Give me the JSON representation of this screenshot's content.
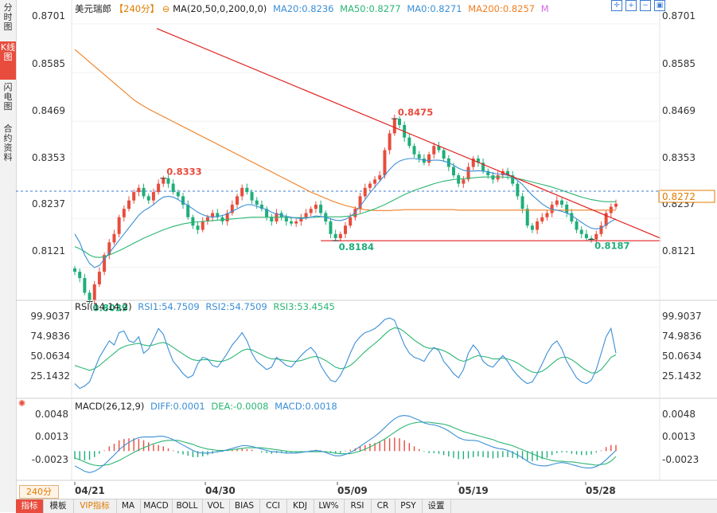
{
  "left_tabs": [
    {
      "label": "分时图",
      "active": false
    },
    {
      "label": "K线图",
      "active": true
    },
    {
      "label": "闪电图",
      "active": false
    },
    {
      "label": "合约资料",
      "active": false
    }
  ],
  "header": {
    "symbol": "美元瑞郎",
    "period": "【240分】",
    "ma_label": "MA(20,50,0,200,0,0)",
    "ma20": "MA20:0.8236",
    "ma50": "MA50:0.8277",
    "ma0": "MA0:0.8271",
    "ma200": "MA200:0.8257",
    "extra": "M"
  },
  "colors": {
    "up": "#e84c3d",
    "down": "#1fae79",
    "ma20": "#3b8fd6",
    "ma50": "#2bb673",
    "ma200": "#f07f22",
    "trendline": "#e02020",
    "axis_text": "#333333",
    "dashed": "#3b7bd6"
  },
  "price_axis": [
    "0.8701",
    "0.8585",
    "0.8469",
    "0.8353",
    "0.8237",
    "0.8121"
  ],
  "current_price": "0.8272",
  "annotations": {
    "a1": "0.8333",
    "a2": "0.8475",
    "a3": "0.8184",
    "a4": "0.8187",
    "a5": "0.8039"
  },
  "rsi": {
    "title": "RSI(14,14,2)",
    "rsi1": "RSI1:54.7509",
    "rsi2": "RSI2:54.7509",
    "rsi3": "RSI3:53.4545",
    "axis": [
      "99.9037",
      "74.9836",
      "50.0634",
      "25.1432"
    ]
  },
  "macd": {
    "title": "MACD(26,12,9)",
    "diff": "DIFF:0.0001",
    "dea": "DEA:-0.0008",
    "macd": "MACD:0.0018",
    "axis": [
      "0.0048",
      "0.0013",
      "-0.0023"
    ]
  },
  "dates": [
    "04/21",
    "04/30",
    "05/09",
    "05/19",
    "05/28"
  ],
  "period_tag": "240分",
  "bottom_tabs": [
    {
      "label": "指标",
      "active": true,
      "vip": false
    },
    {
      "label": "模板",
      "active": false,
      "vip": false
    },
    {
      "label": "VIP指标",
      "active": false,
      "vip": true
    },
    {
      "label": "MA",
      "active": false,
      "vip": false
    },
    {
      "label": "MACD",
      "active": false,
      "vip": false
    },
    {
      "label": "BOLL",
      "active": false,
      "vip": false
    },
    {
      "label": "VOL",
      "active": false,
      "vip": false
    },
    {
      "label": "BIAS",
      "active": false,
      "vip": false
    },
    {
      "label": "CCI",
      "active": false,
      "vip": false
    },
    {
      "label": "KDJ",
      "active": false,
      "vip": false
    },
    {
      "label": "LW%",
      "active": false,
      "vip": false
    },
    {
      "label": "RSI",
      "active": false,
      "vip": false
    },
    {
      "label": "CR",
      "active": false,
      "vip": false
    },
    {
      "label": "PSY",
      "active": false,
      "vip": false
    },
    {
      "label": "设置",
      "active": false,
      "vip": false
    }
  ],
  "toolbar_icons": [
    "crosshair-icon",
    "zoom-in-icon",
    "zoom-out-icon",
    "layout-icon"
  ],
  "chart_data": {
    "type": "candlestick",
    "symbol": "美元瑞郎",
    "period": "240分",
    "ylim": [
      0.804,
      0.872
    ],
    "x_dates": [
      "04/21",
      "04/30",
      "05/09",
      "05/19",
      "05/28"
    ],
    "close_path": [
      0.811,
      0.8095,
      0.806,
      0.8042,
      0.808,
      0.811,
      0.815,
      0.818,
      0.82,
      0.824,
      0.826,
      0.828,
      0.83,
      0.831,
      0.829,
      0.828,
      0.83,
      0.832,
      0.8333,
      0.832,
      0.83,
      0.829,
      0.827,
      0.824,
      0.822,
      0.821,
      0.823,
      0.824,
      0.825,
      0.824,
      0.823,
      0.825,
      0.827,
      0.829,
      0.831,
      0.83,
      0.828,
      0.827,
      0.826,
      0.824,
      0.823,
      0.825,
      0.824,
      0.823,
      0.8225,
      0.823,
      0.824,
      0.825,
      0.826,
      0.827,
      0.825,
      0.823,
      0.82,
      0.819,
      0.82,
      0.822,
      0.824,
      0.826,
      0.829,
      0.831,
      0.832,
      0.833,
      0.834,
      0.84,
      0.844,
      0.8475,
      0.846,
      0.843,
      0.841,
      0.839,
      0.838,
      0.837,
      0.839,
      0.841,
      0.84,
      0.838,
      0.836,
      0.834,
      0.832,
      0.833,
      0.836,
      0.838,
      0.837,
      0.835,
      0.834,
      0.833,
      0.834,
      0.835,
      0.834,
      0.832,
      0.829,
      0.826,
      0.822,
      0.821,
      0.823,
      0.824,
      0.825,
      0.827,
      0.828,
      0.827,
      0.825,
      0.823,
      0.821,
      0.82,
      0.819,
      0.8187,
      0.82,
      0.822,
      0.825,
      0.8265,
      0.8272
    ],
    "ma20_path": [
      0.82,
      0.818,
      0.815,
      0.813,
      0.812,
      0.8125,
      0.814,
      0.8155,
      0.817,
      0.8185,
      0.82,
      0.8215,
      0.823,
      0.8245,
      0.8255,
      0.8262,
      0.827,
      0.828,
      0.8288,
      0.829,
      0.8288,
      0.8282,
      0.8275,
      0.8268,
      0.826,
      0.8252,
      0.8246,
      0.8242,
      0.824,
      0.8242,
      0.8244,
      0.8248,
      0.8254,
      0.826,
      0.8266,
      0.827,
      0.827,
      0.8266,
      0.8262,
      0.8258,
      0.8252,
      0.8248,
      0.8245,
      0.8242,
      0.824,
      0.8238,
      0.8237,
      0.8238,
      0.824,
      0.8243,
      0.8242,
      0.824,
      0.8236,
      0.8233,
      0.8232,
      0.8235,
      0.8242,
      0.8252,
      0.8266,
      0.8282,
      0.8298,
      0.8312,
      0.8326,
      0.834,
      0.8354,
      0.8366,
      0.8374,
      0.8378,
      0.838,
      0.838,
      0.8378,
      0.8376,
      0.8375,
      0.8376,
      0.8376,
      0.8374,
      0.837,
      0.8364,
      0.8357,
      0.8352,
      0.835,
      0.835,
      0.8351,
      0.835,
      0.8348,
      0.8345,
      0.8343,
      0.8342,
      0.834,
      0.8336,
      0.8328,
      0.8318,
      0.8305,
      0.8292,
      0.8282,
      0.8272,
      0.8264,
      0.8259,
      0.8257,
      0.8254,
      0.825,
      0.8244,
      0.8236,
      0.8228,
      0.822,
      0.8214,
      0.8212,
      0.8214,
      0.8222,
      0.823,
      0.8236
    ],
    "ma50_path": [
      0.817,
      0.8165,
      0.8158,
      0.815,
      0.8145,
      0.8144,
      0.8146,
      0.815,
      0.8155,
      0.816,
      0.8166,
      0.8172,
      0.8178,
      0.8184,
      0.819,
      0.8195,
      0.82,
      0.8205,
      0.821,
      0.8214,
      0.8218,
      0.8221,
      0.8224,
      0.8226,
      0.8228,
      0.8229,
      0.823,
      0.8231,
      0.8232,
      0.8233,
      0.8234,
      0.8235,
      0.8236,
      0.8237,
      0.8238,
      0.8239,
      0.824,
      0.824,
      0.824,
      0.824,
      0.824,
      0.824,
      0.824,
      0.824,
      0.8239,
      0.8239,
      0.8239,
      0.8239,
      0.824,
      0.824,
      0.8241,
      0.8241,
      0.8241,
      0.8241,
      0.8241,
      0.8242,
      0.8243,
      0.8245,
      0.8248,
      0.8252,
      0.8256,
      0.826,
      0.8265,
      0.827,
      0.8276,
      0.8282,
      0.8288,
      0.8294,
      0.8299,
      0.8304,
      0.8308,
      0.8312,
      0.8316,
      0.832,
      0.8323,
      0.8326,
      0.8328,
      0.833,
      0.8331,
      0.8332,
      0.8333,
      0.8334,
      0.8335,
      0.8336,
      0.8336,
      0.8336,
      0.8336,
      0.8336,
      0.8335,
      0.8334,
      0.8332,
      0.833,
      0.8327,
      0.8324,
      0.8321,
      0.8318,
      0.8315,
      0.8312,
      0.8308,
      0.8304,
      0.83,
      0.8296,
      0.8292,
      0.8288,
      0.8285,
      0.8282,
      0.828,
      0.8278,
      0.8277,
      0.8277,
      0.8277
    ],
    "ma200_path": [
      0.864,
      0.863,
      0.862,
      0.861,
      0.86,
      0.859,
      0.858,
      0.857,
      0.856,
      0.855,
      0.854,
      0.853,
      0.852,
      0.8512,
      0.8505,
      0.8498,
      0.8492,
      0.8486,
      0.848,
      0.8474,
      0.8468,
      0.8462,
      0.8456,
      0.845,
      0.8444,
      0.8438,
      0.8432,
      0.8426,
      0.842,
      0.8414,
      0.8408,
      0.8402,
      0.8396,
      0.839,
      0.8384,
      0.8378,
      0.8372,
      0.8366,
      0.836,
      0.8354,
      0.8348,
      0.8342,
      0.8336,
      0.833,
      0.8324,
      0.8318,
      0.8312,
      0.8306,
      0.83,
      0.8295,
      0.829,
      0.8285,
      0.828,
      0.8276,
      0.8272,
      0.8268,
      0.8265,
      0.8262,
      0.826,
      0.8258,
      0.8257,
      0.8256,
      0.8256,
      0.8256,
      0.8256,
      0.8257,
      0.8257,
      0.8258,
      0.8258,
      0.8258,
      0.8258,
      0.8258,
      0.8258,
      0.8258,
      0.8258,
      0.8258,
      0.8258,
      0.8258,
      0.8257,
      0.8257,
      0.8257,
      0.8257,
      0.8257,
      0.8257,
      0.8257,
      0.8257,
      0.8257,
      0.8257,
      0.8257,
      0.8257,
      0.8257,
      0.8257,
      0.8257,
      0.8257,
      0.8257,
      0.8257,
      0.8257,
      0.8257,
      0.8257,
      0.8257,
      0.8257,
      0.8257,
      0.8257,
      0.8257,
      0.8257,
      0.8257,
      0.8257,
      0.8257,
      0.8257,
      0.8257,
      0.8257
    ],
    "trendlines": [
      {
        "name": "resistance",
        "points": [
          [
            0.14,
            0.869
          ],
          [
            1.0,
            0.819
          ]
        ]
      },
      {
        "name": "support",
        "points": [
          [
            0.42,
            0.8184
          ],
          [
            1.0,
            0.8184
          ]
        ]
      }
    ],
    "current_price": 0.8272,
    "annotations": [
      {
        "label": "0.8333",
        "index": 18
      },
      {
        "label": "0.8475",
        "index": 65
      },
      {
        "label": "0.8184",
        "index": 53
      },
      {
        "label": "0.8187",
        "index": 105
      },
      {
        "label": "0.8039",
        "index": 3
      }
    ],
    "rsi": {
      "ylim": [
        0,
        100
      ],
      "rsi_path": [
        18,
        12,
        15,
        20,
        35,
        50,
        60,
        70,
        65,
        80,
        82,
        70,
        68,
        75,
        55,
        60,
        72,
        85,
        78,
        60,
        45,
        38,
        30,
        25,
        28,
        42,
        50,
        48,
        40,
        38,
        46,
        55,
        65,
        72,
        80,
        70,
        55,
        45,
        40,
        35,
        38,
        50,
        45,
        40,
        38,
        45,
        52,
        58,
        62,
        55,
        40,
        30,
        22,
        20,
        28,
        40,
        55,
        68,
        75,
        80,
        82,
        85,
        90,
        96,
        98,
        95,
        80,
        65,
        55,
        50,
        48,
        45,
        55,
        62,
        58,
        45,
        38,
        30,
        25,
        35,
        55,
        65,
        58,
        45,
        40,
        38,
        45,
        52,
        45,
        35,
        28,
        22,
        18,
        20,
        30,
        42,
        55,
        65,
        70,
        60,
        45,
        35,
        25,
        20,
        18,
        22,
        35,
        55,
        75,
        85,
        55
      ],
      "signal_path": [
        40,
        38,
        36,
        34,
        36,
        40,
        45,
        50,
        55,
        60,
        63,
        65,
        66,
        67,
        65,
        64,
        65,
        67,
        68,
        66,
        62,
        58,
        54,
        50,
        47,
        46,
        47,
        47,
        46,
        45,
        45,
        47,
        50,
        54,
        58,
        60,
        59,
        56,
        53,
        50,
        48,
        48,
        47,
        46,
        45,
        45,
        46,
        48,
        50,
        51,
        49,
        46,
        42,
        38,
        36,
        37,
        40,
        45,
        51,
        57,
        62,
        67,
        72,
        78,
        83,
        86,
        85,
        81,
        76,
        71,
        67,
        63,
        61,
        61,
        60,
        58,
        55,
        51,
        47,
        45,
        47,
        50,
        52,
        51,
        50,
        48,
        48,
        49,
        48,
        46,
        43,
        39,
        35,
        32,
        31,
        33,
        37,
        42,
        47,
        50,
        50,
        47,
        43,
        38,
        34,
        31,
        31,
        35,
        42,
        50,
        53
      ]
    },
    "macd": {
      "ylim": [
        -0.004,
        0.0062
      ],
      "diff_path": [
        -0.0022,
        -0.0026,
        -0.003,
        -0.0032,
        -0.003,
        -0.0026,
        -0.002,
        -0.0013,
        -0.0006,
        0.0002,
        0.0008,
        0.0013,
        0.0017,
        0.002,
        0.0021,
        0.0021,
        0.0021,
        0.0022,
        0.0022,
        0.002,
        0.0017,
        0.0013,
        0.0009,
        0.0005,
        0.0001,
        -0.0002,
        -0.0003,
        -0.0003,
        -0.0002,
        -0.0001,
        0.0,
        0.0002,
        0.0004,
        0.0006,
        0.0008,
        0.0008,
        0.0007,
        0.0005,
        0.0003,
        0.0001,
        -0.0001,
        -0.0001,
        -0.0002,
        -0.0003,
        -0.0003,
        -0.0003,
        -0.0002,
        -0.0001,
        0.0,
        0.0001,
        0.0,
        -0.0002,
        -0.0005,
        -0.0007,
        -0.0007,
        -0.0005,
        -0.0002,
        0.0002,
        0.0007,
        0.0012,
        0.0017,
        0.0022,
        0.0028,
        0.0035,
        0.0042,
        0.0048,
        0.0052,
        0.0053,
        0.0052,
        0.0049,
        0.0046,
        0.0042,
        0.004,
        0.0039,
        0.0037,
        0.0034,
        0.003,
        0.0025,
        0.002,
        0.0017,
        0.0016,
        0.0016,
        0.0015,
        0.0012,
        0.0009,
        0.0006,
        0.0004,
        0.0003,
        0.0001,
        -0.0002,
        -0.0006,
        -0.001,
        -0.0015,
        -0.0019,
        -0.0021,
        -0.0022,
        -0.0022,
        -0.002,
        -0.0018,
        -0.0017,
        -0.0018,
        -0.002,
        -0.0022,
        -0.0024,
        -0.0025,
        -0.0025,
        -0.0023,
        -0.0019,
        -0.0013,
        -0.0006,
        0.0001
      ],
      "dea_path": [
        -0.001,
        -0.0013,
        -0.0016,
        -0.0019,
        -0.0021,
        -0.0022,
        -0.0021,
        -0.002,
        -0.0017,
        -0.0014,
        -0.001,
        -0.0006,
        -0.0002,
        0.0002,
        0.0005,
        0.0008,
        0.0011,
        0.0013,
        0.0015,
        0.0016,
        0.0016,
        0.0016,
        0.0014,
        0.0012,
        0.001,
        0.0007,
        0.0005,
        0.0003,
        0.0002,
        0.0001,
        0.0001,
        0.0001,
        0.0002,
        0.0003,
        0.0004,
        0.0005,
        0.0005,
        0.0005,
        0.0005,
        0.0004,
        0.0003,
        0.0002,
        0.0001,
        0.0,
        -0.0001,
        -0.0001,
        -0.0001,
        -0.0001,
        -0.0001,
        -0.0001,
        -0.0001,
        -0.0001,
        -0.0002,
        -0.0003,
        -0.0004,
        -0.0004,
        -0.0004,
        -0.0002,
        0.0,
        0.0003,
        0.0006,
        0.001,
        0.0014,
        0.0018,
        0.0023,
        0.0028,
        0.0033,
        0.0037,
        0.004,
        0.0042,
        0.0043,
        0.0043,
        0.0043,
        0.0042,
        0.0041,
        0.004,
        0.0038,
        0.0035,
        0.0032,
        0.0029,
        0.0027,
        0.0025,
        0.0023,
        0.0021,
        0.0019,
        0.0017,
        0.0014,
        0.0012,
        0.001,
        0.0008,
        0.0005,
        0.0002,
        -0.0001,
        -0.0004,
        -0.0007,
        -0.001,
        -0.0012,
        -0.0014,
        -0.0015,
        -0.0015,
        -0.0016,
        -0.0016,
        -0.0017,
        -0.0018,
        -0.0019,
        -0.002,
        -0.0021,
        -0.002,
        -0.0019,
        -0.0015,
        -0.0008
      ]
    }
  }
}
